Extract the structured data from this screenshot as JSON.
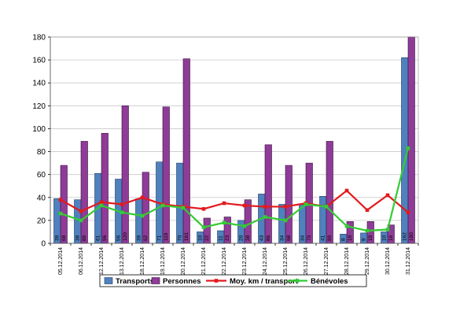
{
  "colors": {
    "transports": "#4f81bd",
    "transports_edge": "#1f3a64",
    "personnes": "#8e3c97",
    "personnes_edge": "#3a1040",
    "moy_km": "#e31a1c",
    "benevoles": "#33cc33",
    "grid": "#c8c8c8",
    "axis": "#000000"
  },
  "chart_data": {
    "type": "bar",
    "ylim": [
      0,
      180
    ],
    "yticks": [
      0,
      20,
      40,
      60,
      80,
      100,
      120,
      140,
      160,
      180
    ],
    "grid": true,
    "legend_position": "bottom",
    "categories": [
      "05.12.2014",
      "06.12.2014",
      "12.12.2014",
      "13.12.2014",
      "18.12.2014",
      "19.12.2014",
      "20.12.2014",
      "21.12.2014",
      "22.12.2014",
      "23.12.2014",
      "24.12.2014",
      "25.12.2014",
      "26.12.2014",
      "27.12.2014",
      "28.12.2014",
      "29.12.2014",
      "30.12.2014",
      "31.12.2014"
    ],
    "series": [
      {
        "name": "Transports",
        "kind": "bar",
        "values": [
          39,
          38,
          61,
          56,
          39,
          71,
          70,
          10,
          11,
          20,
          43,
          34,
          34,
          41,
          8,
          9,
          10,
          162
        ],
        "labels": [
          "39",
          "38",
          "61",
          "56",
          "39",
          "71",
          "70",
          "10",
          "11",
          "20",
          "43",
          "34",
          "34",
          "41",
          "8",
          "9",
          "10",
          "162"
        ]
      },
      {
        "name": "Personnes",
        "kind": "bar",
        "values": [
          68,
          89,
          96,
          120,
          62,
          119,
          161,
          22,
          23,
          38,
          86,
          68,
          70,
          89,
          19,
          19,
          16,
          180
        ],
        "labels": [
          "68",
          "89",
          "96",
          "120",
          "62",
          "119",
          "161",
          "22",
          "23",
          "38",
          "86",
          "68",
          "70",
          "89",
          "19",
          "19",
          "16",
          "180"
        ]
      },
      {
        "name": "Moy. km / transport",
        "kind": "line",
        "values": [
          38,
          28,
          36,
          34,
          40,
          34,
          32,
          30,
          35,
          33,
          32,
          32,
          35,
          32,
          46,
          29,
          42,
          27
        ]
      },
      {
        "name": "Bénévoles",
        "kind": "line",
        "values": [
          26,
          20,
          33,
          27,
          24,
          33,
          31,
          14,
          18,
          15,
          23,
          20,
          34,
          32,
          15,
          11,
          12,
          83
        ]
      }
    ]
  }
}
